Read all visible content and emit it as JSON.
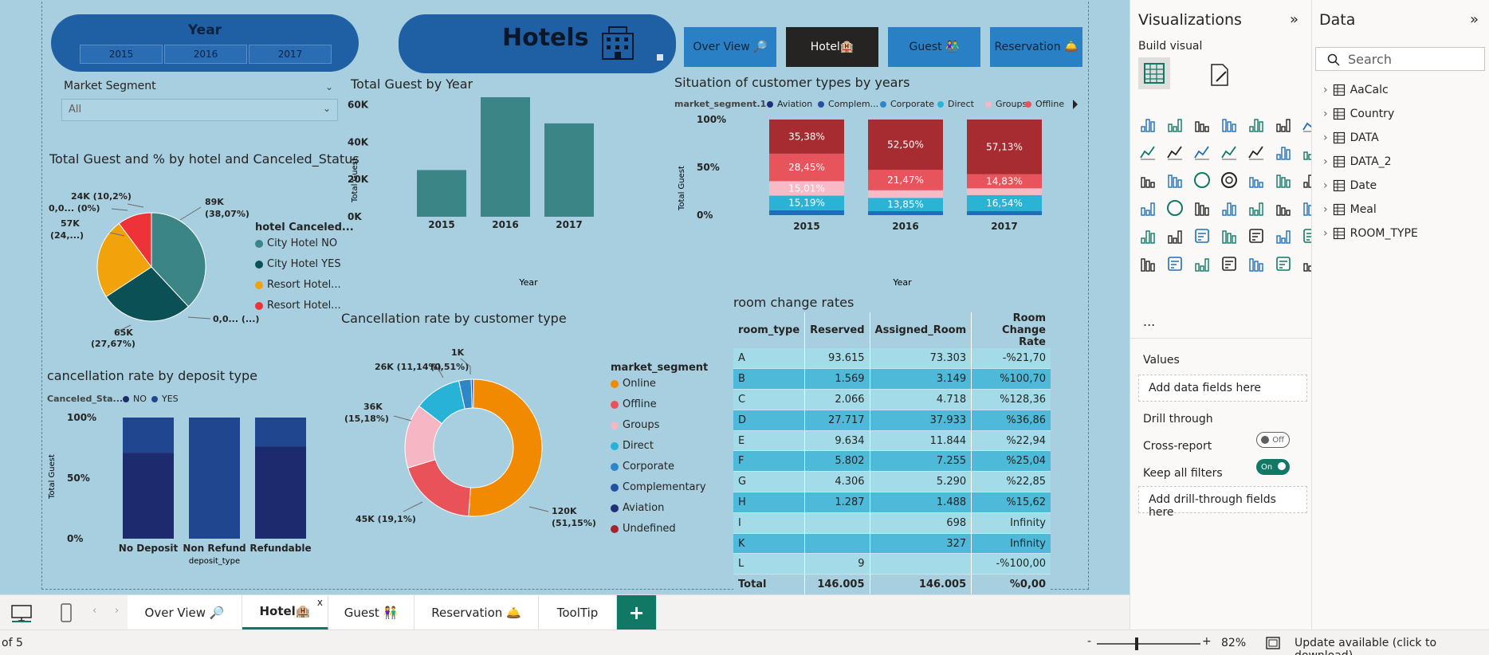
{
  "slicer": {
    "title": "Year",
    "years": [
      "2015",
      "2016",
      "2017"
    ]
  },
  "banner": {
    "title": "Hotels"
  },
  "nav": {
    "overview": "Over View 🔎",
    "hotel": "Hotel🏨",
    "guest": "Guest 👫",
    "reservation": "Reservation 🛎️"
  },
  "segment": {
    "label": "Market Segment",
    "value": "All"
  },
  "colors": {
    "canvas": "#a7cfdf",
    "accent": "#117865",
    "slicer": "#1f5fa3"
  },
  "pie": {
    "title": "Total Guest and % by hotel and Canceled_Status",
    "legend_title": "hotel Canceled...",
    "legend": [
      "City Hotel NO",
      "City Hotel YES",
      "Resort Hotel...",
      "Resort Hotel..."
    ],
    "labels": [
      "89K",
      "(38,07%)",
      "65K",
      "(27,67%)",
      "57K",
      "(24,...)",
      "24K (10,2%)",
      "0,0... (0%)",
      "0,0... (...)"
    ]
  },
  "bar_year": {
    "title": "Total Guest by Year",
    "ylabel": "Total Guest",
    "xlabel": "Year"
  },
  "stack_year": {
    "title": "Situation of customer types by years",
    "legend_title": "market_segment.1",
    "legend": [
      "Aviation",
      "Complem...",
      "Corporate",
      "Direct",
      "Groups",
      "Offline"
    ],
    "ylabel": "Total Guest",
    "xlabel": "Year"
  },
  "deposit": {
    "title": "cancellation rate by deposit type",
    "legend_title": "Canceled_Sta...",
    "legend": [
      "NO",
      "YES"
    ],
    "ylabel": "Total Guest",
    "xlabel": "deposit_type"
  },
  "donut": {
    "title": "Cancellation rate by customer type",
    "legend_title": "market_segment",
    "legend": [
      "Online",
      "Offline",
      "Groups",
      "Direct",
      "Corporate",
      "Complementary",
      "Aviation",
      "Undefined"
    ],
    "labels": [
      "120K",
      "(51,15%)",
      "45K (19,1%)",
      "36K",
      "(15,18%)",
      "26K (11,14%)",
      "1K",
      "(0,51%)"
    ]
  },
  "room_table": {
    "title": "room change rates",
    "headers": [
      "room_type",
      "Reserved",
      "Assigned_Room",
      "Room Change Rate"
    ],
    "rows": [
      [
        "A",
        "93.615",
        "73.303",
        "-%21,70"
      ],
      [
        "B",
        "1.569",
        "3.149",
        "%100,70"
      ],
      [
        "C",
        "2.066",
        "4.718",
        "%128,36"
      ],
      [
        "D",
        "27.717",
        "37.933",
        "%36,86"
      ],
      [
        "E",
        "9.634",
        "11.844",
        "%22,94"
      ],
      [
        "F",
        "5.802",
        "7.255",
        "%25,04"
      ],
      [
        "G",
        "4.306",
        "5.290",
        "%22,85"
      ],
      [
        "H",
        "1.287",
        "1.488",
        "%15,62"
      ],
      [
        "I",
        "",
        "698",
        "Infinity"
      ],
      [
        "K",
        "",
        "327",
        "Infinity"
      ],
      [
        "L",
        "9",
        "",
        "-%100,00"
      ]
    ],
    "total": [
      "Total",
      "146.005",
      "146.005",
      "%0,00"
    ]
  },
  "chart_data": [
    {
      "type": "bar",
      "title": "Total Guest by Year",
      "categories": [
        "2015",
        "2016",
        "2017"
      ],
      "values": [
        25000,
        70000,
        50000
      ],
      "ylabel": "Total Guest",
      "xlabel": "Year",
      "ylim": [
        0,
        70000
      ],
      "yticks": [
        "0K",
        "20K",
        "40K",
        "60K"
      ]
    },
    {
      "type": "bar",
      "title": "Situation of customer types by years",
      "stacked": true,
      "categories": [
        "2015",
        "2016",
        "2017"
      ],
      "yticks": [
        "0%",
        "50%",
        "100%"
      ],
      "series": [
        {
          "name": "Aviation/Corporate",
          "values": [
            5.0,
            4.2,
            4.4
          ],
          "color": "#1f6fb8"
        },
        {
          "name": "Direct",
          "values": [
            15.19,
            13.85,
            16.54
          ],
          "color": "#2bb3d6"
        },
        {
          "name": "Groups",
          "values": [
            15.01,
            7.98,
            7.1
          ],
          "color": "#f7bac7"
        },
        {
          "name": "Offline",
          "values": [
            28.45,
            21.47,
            14.83
          ],
          "color": "#e8545c"
        },
        {
          "name": "Online",
          "values": [
            35.38,
            52.5,
            57.13
          ],
          "color": "#a72c32"
        }
      ],
      "data_labels": [
        [
          "15,19%",
          "15,01%",
          "28,45%",
          "35,38%"
        ],
        [
          "13,85%",
          "",
          "21,47%",
          "52,50%"
        ],
        [
          "16,54%",
          "",
          "14,83%",
          "57,13%"
        ]
      ]
    },
    {
      "type": "bar",
      "title": "cancellation rate by deposit type",
      "stacked": true,
      "categories": [
        "No Deposit",
        "Non Refund",
        "Refundable"
      ],
      "yticks": [
        "0%",
        "50%",
        "100%"
      ],
      "series": [
        {
          "name": "NO",
          "values": [
            71,
            0,
            76
          ],
          "color": "#1e2a6e"
        },
        {
          "name": "YES",
          "values": [
            29,
            100,
            24
          ],
          "color": "#20468f"
        }
      ]
    },
    {
      "type": "pie",
      "title": "Total Guest and % by hotel and Canceled_Status",
      "categories": [
        "City Hotel NO",
        "City Hotel YES",
        "Resort Hotel NO",
        "Resort Hotel YES"
      ],
      "values": [
        38.07,
        27.67,
        24.06,
        10.2
      ],
      "colors": [
        "#3b8586",
        "#0b5054",
        "#f2a20b",
        "#ee3338"
      ]
    },
    {
      "type": "pie",
      "title": "Cancellation rate by customer type",
      "donut": true,
      "categories": [
        "Online",
        "Offline",
        "Groups",
        "Direct",
        "Corporate",
        "Complementary",
        "Aviation",
        "Undefined"
      ],
      "values": [
        51.15,
        19.1,
        15.18,
        11.14,
        2.9,
        0.51,
        0.02,
        0.0
      ],
      "colors": [
        "#f18a00",
        "#ea5259",
        "#f7b6c4",
        "#29b2d8",
        "#2e86c9",
        "#2151a0",
        "#1f2f7a",
        "#a4262c"
      ]
    }
  ],
  "viz_pane": {
    "title": "Visualizations",
    "build": "Build visual",
    "values": "Values",
    "add_data": "Add data fields here",
    "drill": "Drill through",
    "cross": "Cross-report",
    "cross_state": "Off",
    "keep": "Keep all filters",
    "keep_state": "On",
    "add_drill": "Add drill-through fields here",
    "more": "..."
  },
  "data_pane": {
    "title": "Data",
    "search": "Search",
    "items": [
      "AaCalc",
      "Country",
      "DATA",
      "DATA_2",
      "Date",
      "Meal",
      "ROOM_TYPE"
    ]
  },
  "tabs": [
    "Over View 🔎",
    "Hotel🏨",
    "Guest 👫",
    "Reservation 🛎️",
    "ToolTip"
  ],
  "tab_close": "x",
  "tab_add": "+",
  "status": {
    "page": "of 5",
    "zoom_minus": "-",
    "zoom_plus": "+",
    "zoom": "82%",
    "update": "Update available (click to download)"
  }
}
